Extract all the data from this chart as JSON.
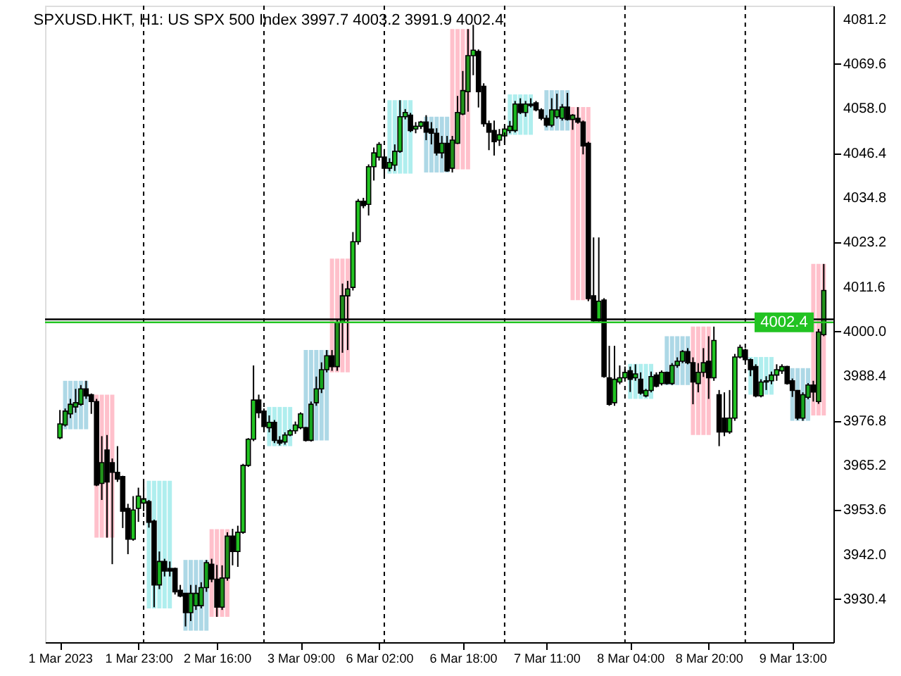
{
  "chart_data": {
    "type": "candlestick",
    "title": "SPXUSD.HKT, H1: US SPX 500 Index 3997.7 4003.2 3991.9 4002.4",
    "categories": [
      "1 Mar 2023",
      null,
      null,
      null,
      null,
      null,
      null,
      null,
      null,
      null,
      null,
      null,
      null,
      null,
      null,
      "1 Mar 23:00",
      null,
      null,
      null,
      null,
      null,
      null,
      null,
      null,
      null,
      null,
      null,
      null,
      null,
      null,
      "2 Mar 16:00",
      null,
      null,
      null,
      null,
      null,
      null,
      null,
      null,
      null,
      null,
      null,
      null,
      null,
      null,
      null,
      "3 Mar 09:00",
      null,
      null,
      null,
      null,
      null,
      null,
      null,
      null,
      null,
      null,
      null,
      null,
      null,
      null,
      "6 Mar 02:00",
      null,
      null,
      null,
      null,
      null,
      null,
      null,
      null,
      null,
      null,
      null,
      null,
      null,
      null,
      null,
      "6 Mar 18:00",
      null,
      null,
      null,
      null,
      null,
      null,
      null,
      null,
      null,
      null,
      null,
      null,
      null,
      null,
      null,
      "7 Mar 11:00",
      null,
      null,
      null,
      null,
      null,
      null,
      null,
      null,
      null,
      null,
      null,
      null,
      null,
      null,
      null,
      "8 Mar 04:00",
      null,
      null,
      null,
      null,
      null,
      null,
      null,
      null,
      null,
      null,
      null,
      null,
      null,
      null,
      "8 Mar 20:00",
      null,
      null,
      null,
      null,
      null,
      null,
      null,
      null,
      null,
      null,
      null,
      null,
      null,
      null,
      null,
      "9 Mar 13:00",
      null,
      null,
      null,
      null,
      null,
      null
    ],
    "ohlc": [
      [
        3972.4,
        3979.6,
        3972.0,
        3976.0
      ],
      [
        3975.7,
        3980.0,
        3975.3,
        3979.3
      ],
      [
        3978.6,
        3982.5,
        3977.5,
        3981.1
      ],
      [
        3980.4,
        3985.1,
        3978.9,
        3981.5
      ],
      [
        3981.1,
        3986.1,
        3980.7,
        3985.1
      ],
      [
        3985.1,
        3987.2,
        3982.5,
        3983.3
      ],
      [
        3983.6,
        3983.9,
        3978.6,
        3981.8
      ],
      [
        3981.8,
        3982.5,
        3959.8,
        3960.1
      ],
      [
        3960.5,
        3972.8,
        3956.2,
        3965.9
      ],
      [
        3969.2,
        3973.1,
        3946.4,
        3960.9
      ],
      [
        3965.9,
        3967.0,
        3939.5,
        3963.4
      ],
      [
        3963.4,
        3970.2,
        3960.9,
        3961.6
      ],
      [
        3962.3,
        3962.5,
        3948.9,
        3953.3
      ],
      [
        3954.0,
        3955.2,
        3942.1,
        3946.0
      ],
      [
        3946.0,
        3957.2,
        3945.6,
        3953.6
      ],
      [
        3954.0,
        3959.4,
        3950.5,
        3957.2
      ],
      [
        3955.4,
        3960.7,
        3953.3,
        3956.5
      ],
      [
        3955.8,
        3956.2,
        3949.0,
        3950.4
      ],
      [
        3950.7,
        3951.1,
        3928.3,
        3934.1
      ],
      [
        3934.1,
        3942.8,
        3933.0,
        3940.2
      ],
      [
        3940.2,
        3940.9,
        3936.3,
        3937.7
      ],
      [
        3938.4,
        3940.2,
        3936.3,
        3937.7
      ],
      [
        3938.4,
        3938.6,
        3931.6,
        3932.3
      ],
      [
        3932.7,
        3934.1,
        3930.9,
        3931.2
      ],
      [
        3931.9,
        3932.0,
        3923.3,
        3926.9
      ],
      [
        3926.9,
        3934.1,
        3924.7,
        3931.9
      ],
      [
        3928.7,
        3934.1,
        3927.6,
        3931.9
      ],
      [
        3928.7,
        3934.8,
        3928.0,
        3933.4
      ],
      [
        3933.4,
        3940.6,
        3932.3,
        3939.9
      ],
      [
        3939.5,
        3940.9,
        3934.8,
        3935.6
      ],
      [
        3935.6,
        3939.3,
        3925.8,
        3928.3
      ],
      [
        3928.3,
        3939.2,
        3927.6,
        3935.9
      ],
      [
        3935.9,
        3947.8,
        3935.2,
        3946.8
      ],
      [
        3946.8,
        3948.7,
        3939.2,
        3942.8
      ],
      [
        3942.8,
        3949.5,
        3938.8,
        3947.8
      ],
      [
        3947.8,
        3965.6,
        3947.4,
        3965.2
      ],
      [
        3965.2,
        3972.3,
        3964.8,
        3972.0
      ],
      [
        3972.0,
        3991.2,
        3971.5,
        3982.2
      ],
      [
        3982.2,
        3983.6,
        3977.5,
        3978.9
      ],
      [
        3979.3,
        3980.0,
        3974.2,
        3975.3
      ],
      [
        3975.0,
        3978.2,
        3973.8,
        3976.4
      ],
      [
        3976.4,
        3977.0,
        3971.0,
        3971.7
      ],
      [
        3971.7,
        3972.8,
        3970.4,
        3971.0
      ],
      [
        3971.3,
        3973.8,
        3970.6,
        3973.1
      ],
      [
        3973.1,
        3974.6,
        3972.8,
        3974.2
      ],
      [
        3974.2,
        3976.6,
        3973.4,
        3975.7
      ],
      [
        3975.0,
        3979.0,
        3974.6,
        3978.6
      ],
      [
        3975.0,
        3975.2,
        3971.4,
        3971.7
      ],
      [
        3971.7,
        3981.8,
        3971.4,
        3981.1
      ],
      [
        3981.5,
        3988.3,
        3980.7,
        3985.1
      ],
      [
        3985.1,
        3992.0,
        3984.0,
        3990.1
      ],
      [
        3990.1,
        3995.2,
        3989.4,
        3993.7
      ],
      [
        3993.7,
        3995.2,
        3989.8,
        3990.9
      ],
      [
        3990.9,
        4003.1,
        3989.8,
        4002.4
      ],
      [
        4002.4,
        4012.5,
        3994.5,
        4009.3
      ],
      [
        4009.3,
        4013.2,
        3995.2,
        4011.1
      ],
      [
        4011.5,
        4025.9,
        4010.7,
        4023.4
      ],
      [
        4023.4,
        4034.5,
        4022.6,
        4033.9
      ],
      [
        4033.9,
        4034.8,
        4032.1,
        4032.8
      ],
      [
        4033.1,
        4043.5,
        4030.2,
        4042.9
      ],
      [
        4042.9,
        4047.9,
        4039.3,
        4046.5
      ],
      [
        4045.4,
        4049.3,
        4044.5,
        4048.7
      ],
      [
        4045.4,
        4047.5,
        4040.4,
        4042.5
      ],
      [
        4042.5,
        4045.1,
        4041.7,
        4044.0
      ],
      [
        4043.3,
        4048.7,
        4041.8,
        4046.9
      ],
      [
        4046.9,
        4060.2,
        4046.5,
        4055.9
      ],
      [
        4055.9,
        4057.9,
        4055.2,
        4057.0
      ],
      [
        4056.3,
        4056.9,
        4051.9,
        4052.3
      ],
      [
        4052.7,
        4054.5,
        4051.6,
        4053.4
      ],
      [
        4053.4,
        4054.8,
        4052.7,
        4054.5
      ],
      [
        4054.5,
        4056.3,
        4049.8,
        4051.9
      ],
      [
        4052.7,
        4054.5,
        4048.7,
        4051.6
      ],
      [
        4051.6,
        4052.9,
        4045.8,
        4046.5
      ],
      [
        4046.5,
        4050.9,
        4045.1,
        4049.0
      ],
      [
        4049.0,
        4050.9,
        4041.6,
        4041.8
      ],
      [
        4042.5,
        4050.9,
        4041.4,
        4049.8
      ],
      [
        4049.0,
        4061.3,
        4048.8,
        4057.0
      ],
      [
        4056.6,
        4067.8,
        4056.3,
        4062.7
      ],
      [
        4062.4,
        4078.7,
        4057.2,
        4071.8
      ],
      [
        4071.8,
        4079.8,
        4066.7,
        4073.2
      ],
      [
        4072.9,
        4073.4,
        4058.3,
        4062.4
      ],
      [
        4063.8,
        4064.6,
        4053.3,
        4054.1
      ],
      [
        4054.1,
        4054.9,
        4047.2,
        4051.9
      ],
      [
        4052.3,
        4054.9,
        4045.8,
        4049.4
      ],
      [
        4049.8,
        4052.7,
        4048.3,
        4051.2
      ],
      [
        4050.9,
        4053.7,
        4049.0,
        4052.7
      ],
      [
        4052.3,
        4054.8,
        4051.6,
        4053.4
      ],
      [
        4052.3,
        4060.0,
        4051.8,
        4059.2
      ],
      [
        4059.2,
        4060.7,
        4056.6,
        4057.0
      ],
      [
        4057.0,
        4060.0,
        4055.9,
        4059.2
      ],
      [
        4059.2,
        4060.7,
        4058.3,
        4058.8
      ],
      [
        4059.5,
        4060.0,
        4057.3,
        4057.7
      ],
      [
        4057.7,
        4058.1,
        4055.0,
        4055.5
      ],
      [
        4055.5,
        4056.3,
        4053.2,
        4053.7
      ],
      [
        4053.7,
        4060.7,
        4053.2,
        4057.7
      ],
      [
        4055.9,
        4061.9,
        4055.4,
        4057.7
      ],
      [
        4055.5,
        4059.2,
        4054.9,
        4058.4
      ],
      [
        4058.4,
        4062.1,
        4054.9,
        4055.2
      ],
      [
        4055.2,
        4056.6,
        4052.5,
        4056.3
      ],
      [
        4055.5,
        4058.4,
        4054.1,
        4054.5
      ],
      [
        4054.5,
        4054.9,
        4046.1,
        4048.3
      ],
      [
        4049.0,
        4049.4,
        4007.9,
        4008.6
      ],
      [
        4009.3,
        4024.5,
        4002.4,
        4002.8
      ],
      [
        4002.8,
        4024.5,
        4002.4,
        4007.9
      ],
      [
        4008.2,
        4008.7,
        3988.0,
        3988.3
      ],
      [
        3988.0,
        3996.3,
        3980.7,
        3981.1
      ],
      [
        3981.5,
        3996.3,
        3980.7,
        3987.6
      ],
      [
        3986.9,
        3991.2,
        3986.3,
        3988.0
      ],
      [
        3988.0,
        3990.9,
        3987.7,
        3989.4
      ],
      [
        3989.8,
        3990.9,
        3984.3,
        3987.6
      ],
      [
        3988.0,
        3991.5,
        3987.2,
        3989.0
      ],
      [
        3987.6,
        3989.4,
        3983.6,
        3984.0
      ],
      [
        3983.3,
        3985.1,
        3982.9,
        3984.7
      ],
      [
        3984.7,
        3989.6,
        3984.2,
        3988.3
      ],
      [
        3988.7,
        3989.4,
        3985.5,
        3985.8
      ],
      [
        3986.5,
        3989.9,
        3986.0,
        3989.4
      ],
      [
        3989.4,
        3989.6,
        3986.2,
        3986.5
      ],
      [
        3986.5,
        3991.8,
        3986.1,
        3991.2
      ],
      [
        3991.2,
        3993.3,
        3990.6,
        3992.3
      ],
      [
        3992.3,
        3995.2,
        3991.8,
        3994.8
      ],
      [
        3994.8,
        3995.7,
        3991.5,
        3991.9
      ],
      [
        3991.9,
        3993.3,
        3981.1,
        3986.9
      ],
      [
        3986.5,
        3991.8,
        3984.2,
        3989.4
      ],
      [
        3989.4,
        3995.7,
        3988.2,
        3991.9
      ],
      [
        3992.3,
        3998.8,
        3982.5,
        3988.0
      ],
      [
        3988.0,
        4001.3,
        3987.2,
        3997.7
      ],
      [
        3983.6,
        3984.8,
        3970.2,
        3973.9
      ],
      [
        3977.5,
        3984.2,
        3972.8,
        3973.9
      ],
      [
        3973.9,
        3984.8,
        3973.4,
        3977.5
      ],
      [
        3977.5,
        3994.2,
        3976.8,
        3993.4
      ],
      [
        3993.4,
        3996.6,
        3993.0,
        3995.9
      ],
      [
        3995.2,
        3995.6,
        3992.3,
        3992.7
      ],
      [
        3992.7,
        3993.0,
        3988.4,
        3990.1
      ],
      [
        3990.9,
        3991.5,
        3982.9,
        3983.3
      ],
      [
        3983.3,
        3987.6,
        3982.9,
        3986.9
      ],
      [
        3986.9,
        3988.4,
        3984.8,
        3987.2
      ],
      [
        3987.2,
        3989.6,
        3986.3,
        3988.7
      ],
      [
        3988.7,
        3991.5,
        3987.2,
        3990.1
      ],
      [
        3989.8,
        3991.5,
        3989.0,
        3990.9
      ],
      [
        3990.9,
        3991.1,
        3986.2,
        3986.5
      ],
      [
        3987.2,
        3987.8,
        3983.0,
        3984.7
      ],
      [
        3984.7,
        3984.8,
        3977.0,
        3977.5
      ],
      [
        3977.5,
        3984.2,
        3976.8,
        3983.6
      ],
      [
        3982.9,
        3986.6,
        3982.4,
        3986.1
      ],
      [
        3986.1,
        3987.2,
        3981.8,
        3984.3
      ],
      [
        3981.8,
        4000.7,
        3981.2,
        3999.9
      ],
      [
        3999.2,
        4017.6,
        3998.8,
        4010.7
      ]
    ],
    "colors": [
      "#22c322",
      "#22c322",
      "#22c322",
      "#22c322",
      "#22c322",
      "#000000",
      "#000000",
      "#000000",
      "#22c322",
      "#000000",
      "#000000",
      "#000000",
      "#000000",
      "#000000",
      "#22c322",
      "#22c322",
      "#22c322",
      "#000000",
      "#000000",
      "#22c322",
      "#000000",
      "#000000",
      "#000000",
      "#000000",
      "#000000",
      "#22c322",
      "#22c322",
      "#22c322",
      "#22c322",
      "#000000",
      "#000000",
      "#22c322",
      "#22c322",
      "#000000",
      "#22c322",
      "#22c322",
      "#22c322",
      "#22c322",
      "#000000",
      "#000000",
      "#22c322",
      "#000000",
      "#000000",
      "#22c322",
      "#22c322",
      "#22c322",
      "#22c322",
      "#000000",
      "#22c322",
      "#22c322",
      "#22c322",
      "#22c322",
      "#000000",
      "#22c322",
      "#22c322",
      "#22c322",
      "#22c322",
      "#22c322",
      "#000000",
      "#22c322",
      "#22c322",
      "#22c322",
      "#000000",
      "#22c322",
      "#22c322",
      "#22c322",
      "#22c322",
      "#000000",
      "#22c322",
      "#22c322",
      "#000000",
      "#000000",
      "#000000",
      "#22c322",
      "#000000",
      "#22c322",
      "#22c322",
      "#22c322",
      "#22c322",
      "#22c322",
      "#000000",
      "#000000",
      "#000000",
      "#000000",
      "#22c322",
      "#22c322",
      "#22c322",
      "#22c322",
      "#000000",
      "#22c322",
      "#000000",
      "#000000",
      "#000000",
      "#000000",
      "#22c322",
      "#22c322",
      "#22c322",
      "#000000",
      "#22c322",
      "#000000",
      "#000000",
      "#000000",
      "#000000",
      "#22c322",
      "#000000",
      "#000000",
      "#22c322",
      "#22c322",
      "#22c322",
      "#000000",
      "#22c322",
      "#000000",
      "#22c322",
      "#22c322",
      "#000000",
      "#22c322",
      "#000000",
      "#22c322",
      "#22c322",
      "#22c322",
      "#000000",
      "#000000",
      "#22c322",
      "#22c322",
      "#000000",
      "#22c322",
      "#000000",
      "#000000",
      "#22c322",
      "#22c322",
      "#22c322",
      "#000000",
      "#000000",
      "#000000",
      "#22c322",
      "#22c322",
      "#22c322",
      "#22c322",
      "#22c322",
      "#000000",
      "#000000",
      "#000000",
      "#22c322",
      "#22c322",
      "#000000",
      "#22c322",
      "#22c322"
    ],
    "series": [
      {
        "type": "bar",
        "base": [
          null,
          3974.6,
          3974.6,
          3974.6,
          3974.6,
          3974.6,
          null,
          3946.4,
          3946.4,
          3946.4,
          3946.4,
          null,
          null,
          null,
          null,
          null,
          null,
          3928.0,
          3928.0,
          3928.0,
          3928.0,
          3928.0,
          null,
          null,
          3922.2,
          3922.2,
          3922.2,
          3922.2,
          3922.2,
          3925.8,
          3925.8,
          3925.8,
          3925.8,
          null,
          null,
          null,
          null,
          null,
          null,
          null,
          3970.2,
          3970.2,
          3970.2,
          3970.2,
          3970.2,
          null,
          null,
          3971.7,
          3971.7,
          3971.7,
          3971.7,
          3971.7,
          3989.4,
          3989.4,
          3989.4,
          3989.4,
          null,
          null,
          null,
          null,
          null,
          null,
          null,
          4041.1,
          4041.1,
          4041.1,
          4041.1,
          4041.1,
          null,
          null,
          4041.4,
          4041.4,
          4041.4,
          4041.4,
          4041.4,
          4042.2,
          4042.2,
          4042.2,
          4042.2,
          null,
          null,
          null,
          null,
          null,
          null,
          null,
          4051.2,
          4051.2,
          4051.2,
          4051.2,
          4051.2,
          null,
          null,
          4052.3,
          4052.3,
          4052.3,
          4052.3,
          4052.3,
          4008.2,
          4008.2,
          4008.2,
          4008.2,
          null,
          null,
          null,
          null,
          null,
          null,
          null,
          3982.5,
          3982.5,
          3982.5,
          3982.5,
          3982.5,
          null,
          null,
          3986.1,
          3986.1,
          3986.1,
          3986.1,
          3986.1,
          3973.1,
          3973.1,
          3973.1,
          3973.1,
          null,
          null,
          null,
          null,
          null,
          null,
          null,
          3983.6,
          3983.6,
          3983.6,
          3983.6,
          3983.6,
          null,
          null,
          null,
          3976.8,
          3976.8,
          3976.8,
          3976.8,
          3978.2,
          3978.2,
          3978.2
        ],
        "values": [
          null,
          12.6,
          12.6,
          12.6,
          12.6,
          12.6,
          null,
          37.2,
          37.2,
          37.2,
          37.2,
          null,
          null,
          null,
          null,
          null,
          null,
          33.2,
          33.2,
          33.2,
          33.2,
          33.2,
          null,
          null,
          18.4,
          18.4,
          18.4,
          18.4,
          18.4,
          22.8,
          22.8,
          22.8,
          22.8,
          null,
          null,
          null,
          null,
          null,
          null,
          null,
          10.2,
          10.2,
          10.2,
          10.2,
          10.2,
          null,
          null,
          23.5,
          23.5,
          23.5,
          23.5,
          23.5,
          29.6,
          29.6,
          29.6,
          29.6,
          null,
          null,
          null,
          null,
          null,
          null,
          null,
          19.1,
          19.1,
          19.1,
          19.1,
          19.1,
          null,
          null,
          14.5,
          14.5,
          14.5,
          14.5,
          14.5,
          36.5,
          36.5,
          36.5,
          36.5,
          null,
          null,
          null,
          null,
          null,
          null,
          null,
          10.5,
          10.5,
          10.5,
          10.5,
          10.5,
          null,
          null,
          10.5,
          10.5,
          10.5,
          10.5,
          10.5,
          50.2,
          50.2,
          50.2,
          50.2,
          null,
          null,
          null,
          null,
          null,
          null,
          null,
          9.1,
          9.1,
          9.1,
          9.1,
          9.1,
          null,
          null,
          12.7,
          12.7,
          12.7,
          12.7,
          12.7,
          28.2,
          28.2,
          28.2,
          28.2,
          null,
          null,
          null,
          null,
          null,
          null,
          null,
          9.8,
          9.8,
          9.8,
          9.8,
          9.8,
          null,
          null,
          null,
          13.7,
          13.7,
          13.7,
          13.7,
          39.4,
          39.4,
          39.4
        ],
        "colors": [
          null,
          "#add8e6",
          "#add8e6",
          "#add8e6",
          "#add8e6",
          "#add8e6",
          null,
          "#ffc0cb",
          "#ffc0cb",
          "#ffc0cb",
          "#ffc0cb",
          null,
          null,
          null,
          null,
          null,
          null,
          "#afeeee",
          "#afeeee",
          "#afeeee",
          "#afeeee",
          "#afeeee",
          null,
          null,
          "#add8e6",
          "#add8e6",
          "#add8e6",
          "#add8e6",
          "#add8e6",
          "#ffc0cb",
          "#ffc0cb",
          "#ffc0cb",
          "#ffc0cb",
          null,
          null,
          null,
          null,
          null,
          null,
          null,
          "#afeeee",
          "#afeeee",
          "#afeeee",
          "#afeeee",
          "#afeeee",
          null,
          null,
          "#add8e6",
          "#add8e6",
          "#add8e6",
          "#add8e6",
          "#add8e6",
          "#ffc0cb",
          "#ffc0cb",
          "#ffc0cb",
          "#ffc0cb",
          null,
          null,
          null,
          null,
          null,
          null,
          null,
          "#afeeee",
          "#afeeee",
          "#afeeee",
          "#afeeee",
          "#afeeee",
          null,
          null,
          "#add8e6",
          "#add8e6",
          "#add8e6",
          "#add8e6",
          "#add8e6",
          "#ffc0cb",
          "#ffc0cb",
          "#ffc0cb",
          "#ffc0cb",
          null,
          null,
          null,
          null,
          null,
          null,
          null,
          "#afeeee",
          "#afeeee",
          "#afeeee",
          "#afeeee",
          "#afeeee",
          null,
          null,
          "#add8e6",
          "#add8e6",
          "#add8e6",
          "#add8e6",
          "#add8e6",
          "#ffc0cb",
          "#ffc0cb",
          "#ffc0cb",
          "#ffc0cb",
          null,
          null,
          null,
          null,
          null,
          null,
          null,
          "#afeeee",
          "#afeeee",
          "#afeeee",
          "#afeeee",
          "#afeeee",
          null,
          null,
          "#add8e6",
          "#add8e6",
          "#add8e6",
          "#add8e6",
          "#add8e6",
          "#ffc0cb",
          "#ffc0cb",
          "#ffc0cb",
          "#ffc0cb",
          null,
          null,
          null,
          null,
          null,
          null,
          null,
          "#afeeee",
          "#afeeee",
          "#afeeee",
          "#afeeee",
          "#afeeee",
          null,
          null,
          null,
          "#add8e6",
          "#add8e6",
          "#add8e6",
          "#add8e6",
          "#ffc0cb",
          "#ffc0cb",
          "#ffc0cb"
        ]
      }
    ],
    "ylim": [
      3919.2,
      4084.8
    ],
    "yticks": [
      {
        "value": 3930.4,
        "label": "3930.4"
      },
      {
        "value": 3942,
        "label": "3942.0"
      },
      {
        "value": 3953.6,
        "label": "3953.6"
      },
      {
        "value": 3965.2,
        "label": "3965.2"
      },
      {
        "value": 3976.8,
        "label": "3976.8"
      },
      {
        "value": 3988.4,
        "label": "3988.4"
      },
      {
        "value": 4000,
        "label": "4000.0"
      },
      {
        "value": 4011.6,
        "label": "4011.6"
      },
      {
        "value": 4023.2,
        "label": "4023.2"
      },
      {
        "value": 4034.8,
        "label": "4034.8"
      },
      {
        "value": 4046.4,
        "label": "4046.4"
      },
      {
        "value": 4058,
        "label": "4058.0"
      },
      {
        "value": 4069.6,
        "label": "4069.6"
      },
      {
        "value": 4081.2,
        "label": "4081.2"
      }
    ],
    "ref_lines": [
      {
        "axis": "y",
        "value": 4003.2,
        "color": "#000000"
      },
      {
        "axis": "y",
        "value": 4002.4,
        "label": "4002.4",
        "color": "#22c322"
      }
    ]
  }
}
